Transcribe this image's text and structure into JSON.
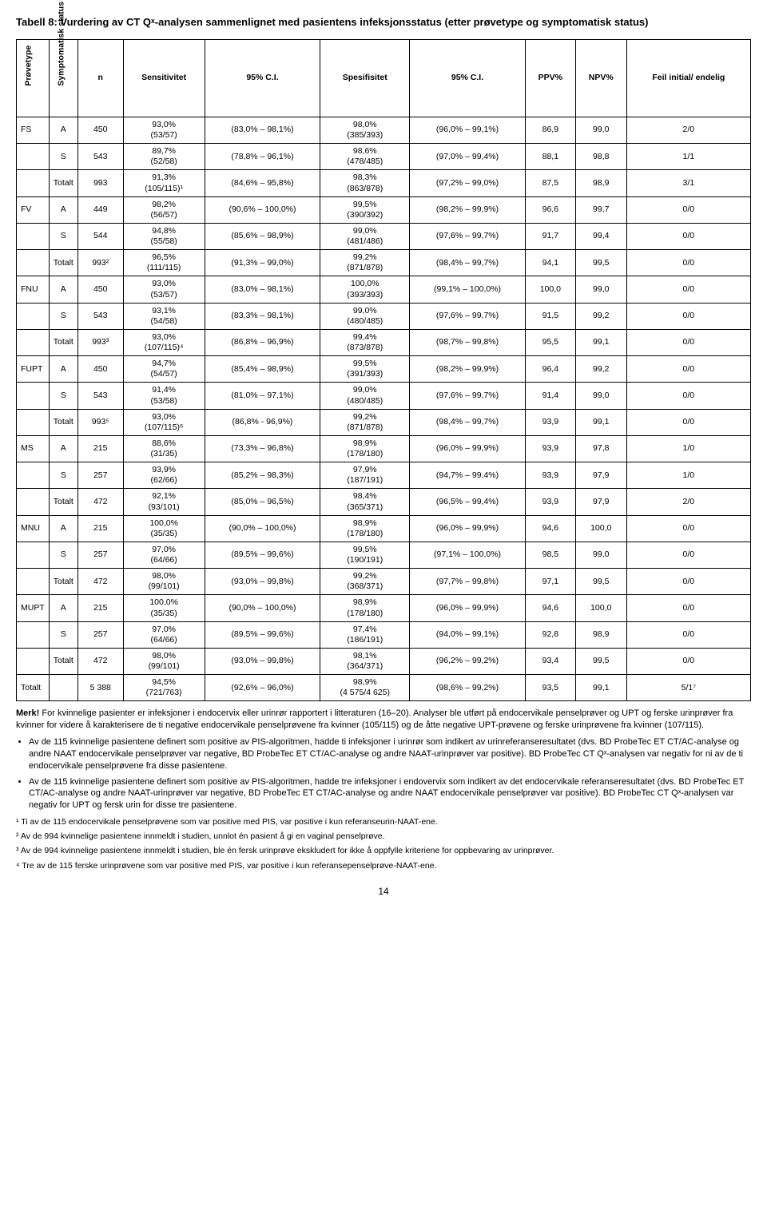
{
  "title": "Tabell 8: Vurdering av CT Qˣ-analysen sammenlignet med pasientens infeksjonsstatus (etter prøvetype og symptomatisk status)",
  "headers": {
    "provetype": "Prøvetype",
    "symptomatisk": "Symptomatisk status",
    "n": "n",
    "sens": "Sensitivitet",
    "ci1": "95% C.I.",
    "spes": "Spesifisitet",
    "ci2": "95% C.I.",
    "ppv": "PPV%",
    "npv": "NPV%",
    "feil": "Feil initial/ endelig"
  },
  "rows": [
    {
      "p": "FS",
      "s": "A",
      "n": "450",
      "sens": "93,0%\n(53/57)",
      "ci1": "(83,0% – 98,1%)",
      "spes": "98,0%\n(385/393)",
      "ci2": "(96,0% – 99,1%)",
      "ppv": "86,9",
      "npv": "99,0",
      "feil": "2/0"
    },
    {
      "p": "",
      "s": "S",
      "n": "543",
      "sens": "89,7%\n(52/58)",
      "ci1": "(78,8% – 96,1%)",
      "spes": "98,6%\n(478/485)",
      "ci2": "(97,0% – 99,4%)",
      "ppv": "88,1",
      "npv": "98,8",
      "feil": "1/1"
    },
    {
      "p": "",
      "s": "Totalt",
      "n": "993",
      "sens": "91,3%\n(105/115)¹",
      "ci1": "(84,6% – 95,8%)",
      "spes": "98,3%\n(863/878)",
      "ci2": "(97,2% – 99,0%)",
      "ppv": "87,5",
      "npv": "98,9",
      "feil": "3/1"
    },
    {
      "p": "FV",
      "s": "A",
      "n": "449",
      "sens": "98,2%\n(56/57)",
      "ci1": "(90,6% – 100,0%)",
      "spes": "99,5%\n(390/392)",
      "ci2": "(98,2% – 99,9%)",
      "ppv": "96,6",
      "npv": "99,7",
      "feil": "0/0"
    },
    {
      "p": "",
      "s": "S",
      "n": "544",
      "sens": "94,8%\n(55/58)",
      "ci1": "(85,6% – 98,9%)",
      "spes": "99,0%\n(481/486)",
      "ci2": "(97,6% – 99,7%)",
      "ppv": "91,7",
      "npv": "99,4",
      "feil": "0/0"
    },
    {
      "p": "",
      "s": "Totalt",
      "n": "993²",
      "sens": "96,5%\n(111/115)",
      "ci1": "(91,3% – 99,0%)",
      "spes": "99,2%\n(871/878)",
      "ci2": "(98,4% – 99,7%)",
      "ppv": "94,1",
      "npv": "99,5",
      "feil": "0/0"
    },
    {
      "p": "FNU",
      "s": "A",
      "n": "450",
      "sens": "93,0%\n(53/57)",
      "ci1": "(83,0% – 98,1%)",
      "spes": "100,0%\n(393/393)",
      "ci2": "(99,1% – 100,0%)",
      "ppv": "100,0",
      "npv": "99,0",
      "feil": "0/0"
    },
    {
      "p": "",
      "s": "S",
      "n": "543",
      "sens": "93,1%\n(54/58)",
      "ci1": "(83,3% – 98,1%)",
      "spes": "99,0%\n(480/485)",
      "ci2": "(97,6% – 99,7%)",
      "ppv": "91,5",
      "npv": "99,2",
      "feil": "0/0"
    },
    {
      "p": "",
      "s": "Totalt",
      "n": "993³",
      "sens": "93,0%\n(107/115)⁴",
      "ci1": "(86,8% – 96,9%)",
      "spes": "99,4%\n(873/878)",
      "ci2": "(98,7% – 99,8%)",
      "ppv": "95,5",
      "npv": "99,1",
      "feil": "0/0"
    },
    {
      "p": "FUPT",
      "s": "A",
      "n": "450",
      "sens": "94,7%\n(54/57)",
      "ci1": "(85,4% – 98,9%)",
      "spes": "99,5%\n(391/393)",
      "ci2": "(98,2% – 99,9%)",
      "ppv": "96,4",
      "npv": "99,2",
      "feil": "0/0"
    },
    {
      "p": "",
      "s": "S",
      "n": "543",
      "sens": "91,4%\n(53/58)",
      "ci1": "(81,0% – 97,1%)",
      "spes": "99,0%\n(480/485)",
      "ci2": "(97,6% – 99,7%)",
      "ppv": "91,4",
      "npv": "99,0",
      "feil": "0/0"
    },
    {
      "p": "",
      "s": "Totalt",
      "n": "993⁵",
      "sens": "93,0%\n(107/115)⁶",
      "ci1": "(86,8% - 96,9%)",
      "spes": "99,2%\n(871/878)",
      "ci2": "(98,4% – 99,7%)",
      "ppv": "93,9",
      "npv": "99,1",
      "feil": "0/0"
    },
    {
      "p": "MS",
      "s": "A",
      "n": "215",
      "sens": "88,6%\n(31/35)",
      "ci1": "(73,3% – 96,8%)",
      "spes": "98,9%\n(178/180)",
      "ci2": "(96,0% – 99,9%)",
      "ppv": "93,9",
      "npv": "97,8",
      "feil": "1/0"
    },
    {
      "p": "",
      "s": "S",
      "n": "257",
      "sens": "93,9%\n(62/66)",
      "ci1": "(85,2% – 98,3%)",
      "spes": "97,9%\n(187/191)",
      "ci2": "(94,7% – 99,4%)",
      "ppv": "93,9",
      "npv": "97,9",
      "feil": "1/0"
    },
    {
      "p": "",
      "s": "Totalt",
      "n": "472",
      "sens": "92,1%\n(93/101)",
      "ci1": "(85,0% – 96,5%)",
      "spes": "98,4%\n(365/371)",
      "ci2": "(96,5% – 99,4%)",
      "ppv": "93,9",
      "npv": "97,9",
      "feil": "2/0"
    },
    {
      "p": "MNU",
      "s": "A",
      "n": "215",
      "sens": "100,0%\n(35/35)",
      "ci1": "(90,0% – 100,0%)",
      "spes": "98,9%\n(178/180)",
      "ci2": "(96,0% – 99,9%)",
      "ppv": "94,6",
      "npv": "100,0",
      "feil": "0/0"
    },
    {
      "p": "",
      "s": "S",
      "n": "257",
      "sens": "97,0%\n(64/66)",
      "ci1": "(89,5% – 99,6%)",
      "spes": "99,5%\n(190/191)",
      "ci2": "(97,1% – 100,0%)",
      "ppv": "98,5",
      "npv": "99,0",
      "feil": "0/0"
    },
    {
      "p": "",
      "s": "Totalt",
      "n": "472",
      "sens": "98,0%\n(99/101)",
      "ci1": "(93,0% – 99,8%)",
      "spes": "99,2%\n(368/371)",
      "ci2": "(97,7% – 99,8%)",
      "ppv": "97,1",
      "npv": "99,5",
      "feil": "0/0"
    },
    {
      "p": "MUPT",
      "s": "A",
      "n": "215",
      "sens": "100,0%\n(35/35)",
      "ci1": "(90,0% – 100,0%)",
      "spes": "98,9%\n(178/180)",
      "ci2": "(96,0% – 99,9%)",
      "ppv": "94,6",
      "npv": "100,0",
      "feil": "0/0"
    },
    {
      "p": "",
      "s": "S",
      "n": "257",
      "sens": "97,0%\n(64/66)",
      "ci1": "(89,5% – 99,6%)",
      "spes": "97,4%\n(186/191)",
      "ci2": "(94,0% – 99,1%)",
      "ppv": "92,8",
      "npv": "98,9",
      "feil": "0/0"
    },
    {
      "p": "",
      "s": "Totalt",
      "n": "472",
      "sens": "98,0%\n(99/101)",
      "ci1": "(93,0% – 99,8%)",
      "spes": "98,1%\n(364/371)",
      "ci2": "(96,2% – 99,2%)",
      "ppv": "93,4",
      "npv": "99,5",
      "feil": "0/0"
    },
    {
      "p": "Totalt",
      "s": "",
      "n": "5 388",
      "sens": "94,5%\n(721/763)",
      "ci1": "(92,6% – 96,0%)",
      "spes": "98,9%\n(4 575/4 625)",
      "ci2": "(98,6% – 99,2%)",
      "ppv": "93,5",
      "npv": "99,1",
      "feil": "5/1⁷"
    }
  ],
  "merk_label": "Merk!",
  "merk_body": " For kvinnelige pasienter er infeksjoner i endocervix eller urinrør rapportert i litteraturen (16–20). Analyser ble utført på endocervikale penselprøver og UPT og ferske urinprøver fra kvinner for videre å karakterisere de ti negative endocervikale penselprøvene fra kvinner (105/115) og de åtte negative UPT-prøvene og ferske urinprøvene fra kvinner (107/115).",
  "bullets": [
    "Av de 115 kvinnelige pasientene definert som positive av PIS-algoritmen, hadde ti infeksjoner i urinrør som indikert av urinreferanseresultatet (dvs. BD ProbeTec ET CT/AC-analyse og andre NAAT endocervikale penselprøver var negative, BD ProbeTec ET CT/AC-analyse og andre NAAT-urinprøver var positive). BD ProbeTec CT Qˣ-analysen var negativ for ni av de ti endocervikale penselprøvene fra disse pasientene.",
    "Av de 115 kvinnelige pasientene definert som positive av PIS-algoritmen, hadde tre infeksjoner i endovervix som indikert av det endocervikale referanseresultatet (dvs. BD ProbeTec ET CT/AC-analyse og andre NAAT-urinprøver var negative, BD ProbeTec ET CT/AC-analyse og andre NAAT endocervikale penselprøver var positive). BD ProbeTec CT Qˣ-analysen var negativ for UPT og fersk urin for disse tre pasientene."
  ],
  "footnotes": [
    "¹ Ti av de 115 endocervikale penselprøvene som var positive med PIS, var positive i kun referanseurin-NAAT-ene.",
    "² Av de 994 kvinnelige pasientene innmeldt i studien, unnlot én pasient å gi en vaginal penselprøve.",
    "³ Av de 994 kvinnelige pasientene innmeldt i studien, ble én fersk urinprøve ekskludert for ikke å oppfylle kriteriene for oppbevaring av urinprøver.",
    "⁴ Tre av de 115 ferske urinprøvene som var positive med PIS, var positive i kun referansepenselprøve-NAAT-ene."
  ],
  "page": "14"
}
